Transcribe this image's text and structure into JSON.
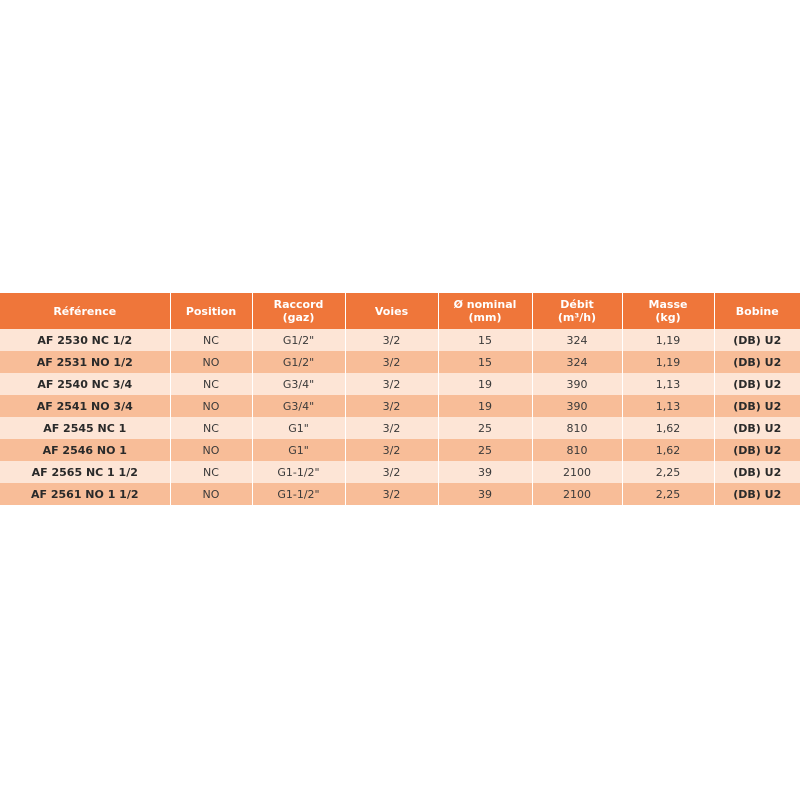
{
  "headers": [
    [
      "Référence",
      ""
    ],
    [
      "Position",
      ""
    ],
    [
      "Raccord",
      "(gaz)"
    ],
    [
      "Voies",
      ""
    ],
    [
      "Ø nominal",
      "(mm)"
    ],
    [
      "Débit",
      "(m³/h)"
    ],
    [
      "Masse",
      "(kg)"
    ],
    [
      "Bobine",
      ""
    ]
  ],
  "rows": [
    [
      "AF 2530 NC 1/2",
      "NC",
      "G1/2\"",
      "3/2",
      "15",
      "324",
      "1,19",
      "(DB) U2"
    ],
    [
      "AF 2531 NO 1/2",
      "NO",
      "G1/2\"",
      "3/2",
      "15",
      "324",
      "1,19",
      "(DB) U2"
    ],
    [
      "AF 2540 NC 3/4",
      "NC",
      "G3/4\"",
      "3/2",
      "19",
      "390",
      "1,13",
      "(DB) U2"
    ],
    [
      "AF 2541 NO 3/4",
      "NO",
      "G3/4\"",
      "3/2",
      "19",
      "390",
      "1,13",
      "(DB) U2"
    ],
    [
      "AF 2545 NC 1",
      "NC",
      "G1\"",
      "3/2",
      "25",
      "810",
      "1,62",
      "(DB) U2"
    ],
    [
      "AF 2546 NO 1",
      "NO",
      "G1\"",
      "3/2",
      "25",
      "810",
      "1,62",
      "(DB) U2"
    ],
    [
      "AF 2565 NC 1 1/2",
      "NC",
      "G1-1/2\"",
      "3/2",
      "39",
      "2100",
      "2,25",
      "(DB) U2"
    ],
    [
      "AF 2561 NO 1 1/2",
      "NO",
      "G1-1/2\"",
      "3/2",
      "39",
      "2100",
      "2,25",
      "(DB) U2"
    ]
  ],
  "colors": {
    "header": "#ef763a",
    "row_light": "#fde5d6",
    "row_dark": "#f8bd98"
  }
}
